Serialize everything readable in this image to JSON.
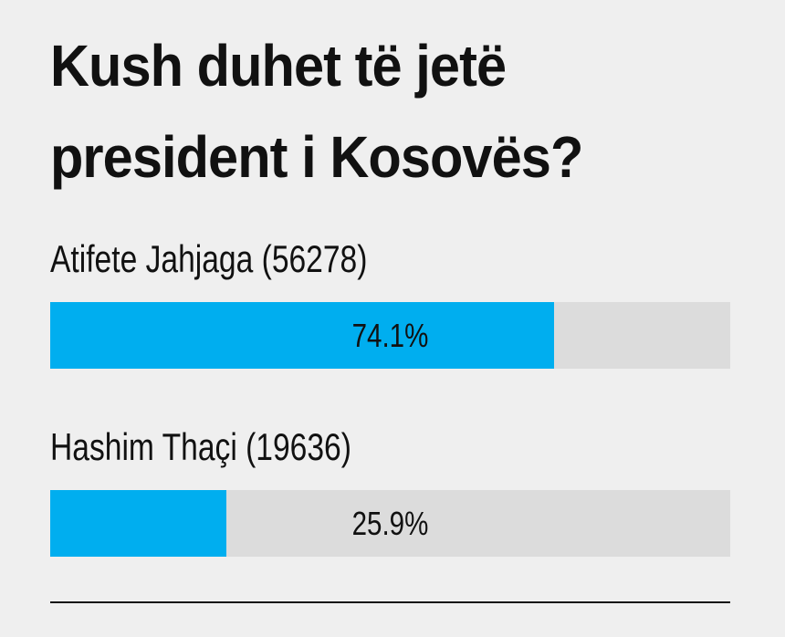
{
  "chart_data": {
    "type": "bar",
    "title": "Kush duhet të jetë president i Kosovës?",
    "categories": [
      "Atifete Jahjaga (56278)",
      "Hashim Thaçi (19636)"
    ],
    "values": [
      74.1,
      25.9
    ],
    "value_labels": [
      "74.1%",
      "25.9%"
    ],
    "color": "#00aeef",
    "xlim": [
      0,
      100
    ]
  }
}
